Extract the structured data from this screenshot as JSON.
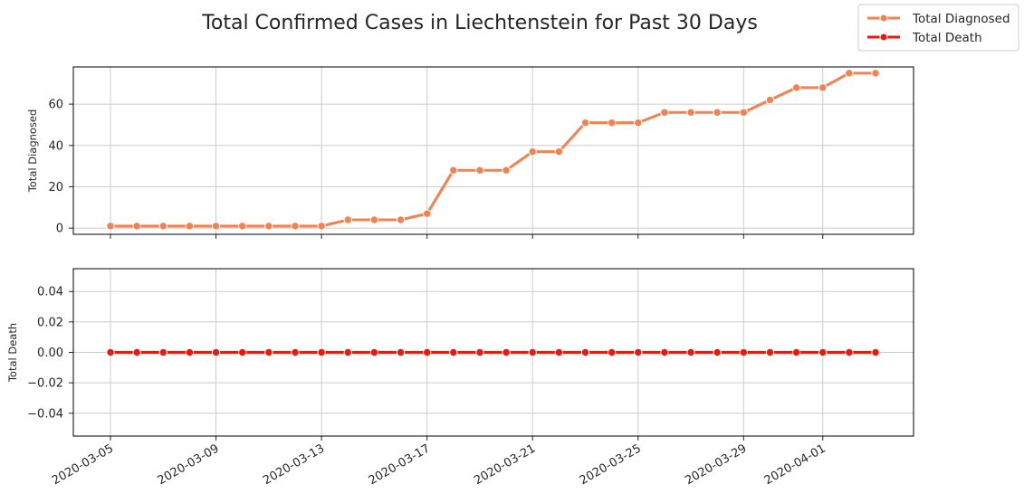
{
  "chart_data": {
    "type": "line",
    "title": "Total Confirmed Cases in Liechtenstein for Past 30 Days",
    "x": [
      "2020-03-05",
      "2020-03-06",
      "2020-03-07",
      "2020-03-08",
      "2020-03-09",
      "2020-03-10",
      "2020-03-11",
      "2020-03-12",
      "2020-03-13",
      "2020-03-14",
      "2020-03-15",
      "2020-03-16",
      "2020-03-17",
      "2020-03-18",
      "2020-03-19",
      "2020-03-20",
      "2020-03-21",
      "2020-03-22",
      "2020-03-23",
      "2020-03-24",
      "2020-03-25",
      "2020-03-26",
      "2020-03-27",
      "2020-03-28",
      "2020-03-29",
      "2020-03-30",
      "2020-03-31",
      "2020-04-01",
      "2020-04-02",
      "2020-04-03"
    ],
    "x_tick_labels": [
      "2020-03-05",
      "2020-03-09",
      "2020-03-13",
      "2020-03-17",
      "2020-03-21",
      "2020-03-25",
      "2020-03-29",
      "2020-04-01"
    ],
    "legend": {
      "placement": "top-right",
      "entries": [
        "Total Diagnosed",
        "Total Death"
      ]
    },
    "grid": true,
    "subplots": [
      {
        "ylabel": "Total Diagnosed",
        "ylim": [
          -3,
          78
        ],
        "y_ticks": [
          0,
          20,
          40,
          60
        ],
        "series": [
          {
            "name": "Total Diagnosed",
            "color": "#f4814f",
            "values": [
              1,
              1,
              1,
              1,
              1,
              1,
              1,
              1,
              1,
              4,
              4,
              4,
              7,
              28,
              28,
              28,
              37,
              37,
              51,
              51,
              51,
              56,
              56,
              56,
              56,
              62,
              68,
              68,
              75,
              75
            ]
          }
        ]
      },
      {
        "ylabel": "Total Death",
        "ylim": [
          -0.055,
          0.055
        ],
        "y_ticks": [
          -0.04,
          -0.02,
          0.0,
          0.02,
          0.04
        ],
        "y_tick_labels": [
          "−0.04",
          "−0.02",
          "0.00",
          "0.02",
          "0.04"
        ],
        "series": [
          {
            "name": "Total Death",
            "color": "#e81a0e",
            "values": [
              0,
              0,
              0,
              0,
              0,
              0,
              0,
              0,
              0,
              0,
              0,
              0,
              0,
              0,
              0,
              0,
              0,
              0,
              0,
              0,
              0,
              0,
              0,
              0,
              0,
              0,
              0,
              0,
              0,
              0
            ]
          }
        ]
      }
    ]
  }
}
